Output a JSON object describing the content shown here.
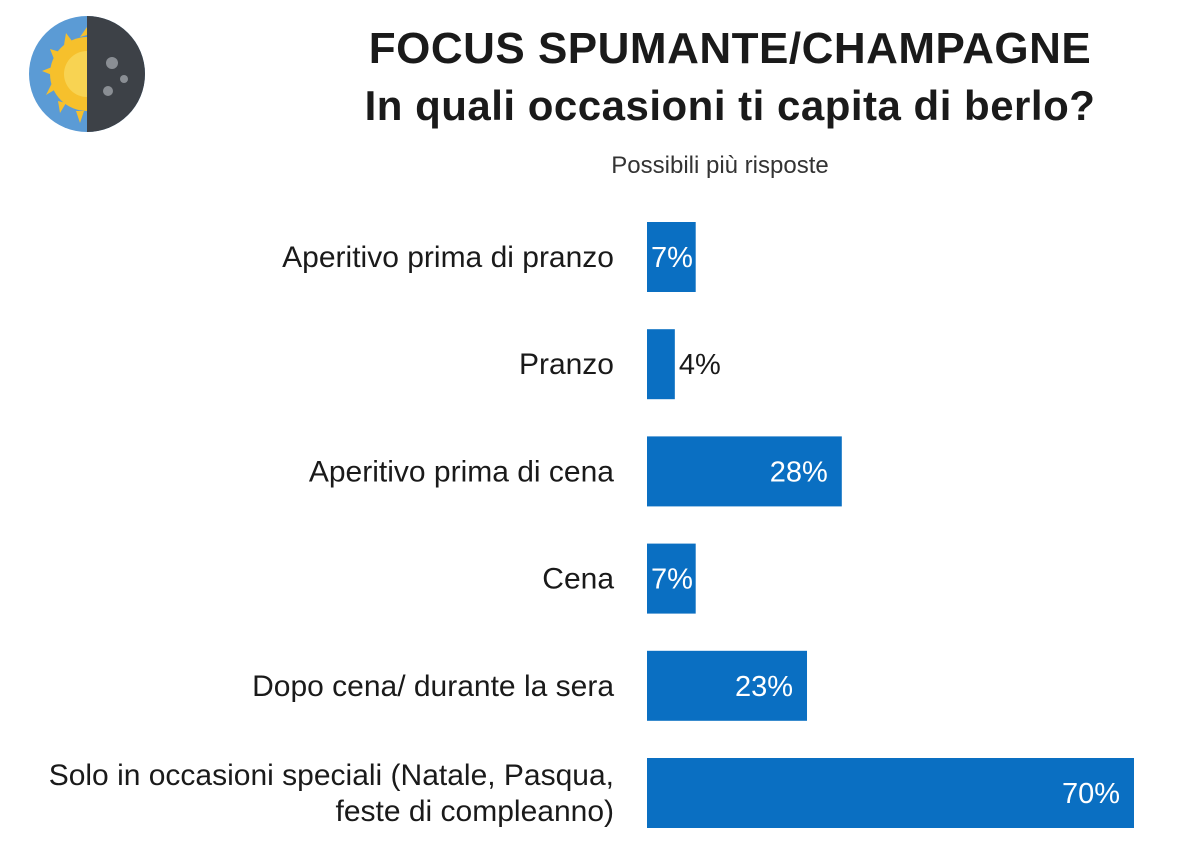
{
  "header": {
    "title_line1": "FOCUS SPUMANTE/CHAMPAGNE",
    "title_line2": "In quali occasioni ti capita di berlo?",
    "subtitle": "Possibili più risposte",
    "logo_icon": "sun-moon-icon"
  },
  "colors": {
    "bar": "#0a6fc2",
    "logo_sky": "#5b9bd5",
    "logo_sun": "#f6c02c",
    "logo_night": "#3d4147"
  },
  "chart_data": {
    "type": "bar",
    "orientation": "horizontal",
    "title": "FOCUS SPUMANTE/CHAMPAGNE In quali occasioni ti capita di berlo?",
    "subtitle": "Possibili più risposte",
    "categories": [
      [
        "Aperitivo prima di pranzo"
      ],
      [
        "Pranzo"
      ],
      [
        "Aperitivo prima di cena"
      ],
      [
        "Cena"
      ],
      [
        "Dopo cena/ durante la sera"
      ],
      [
        "Solo in occasioni speciali (Natale, Pasqua,",
        "feste di compleanno)"
      ]
    ],
    "values": [
      7,
      4,
      28,
      7,
      23,
      70
    ],
    "value_labels": [
      "7%",
      "4%",
      "28%",
      "7%",
      "23%",
      "70%"
    ],
    "unit": "%",
    "xlim": [
      0,
      70
    ],
    "grid": false,
    "legend": "none"
  }
}
